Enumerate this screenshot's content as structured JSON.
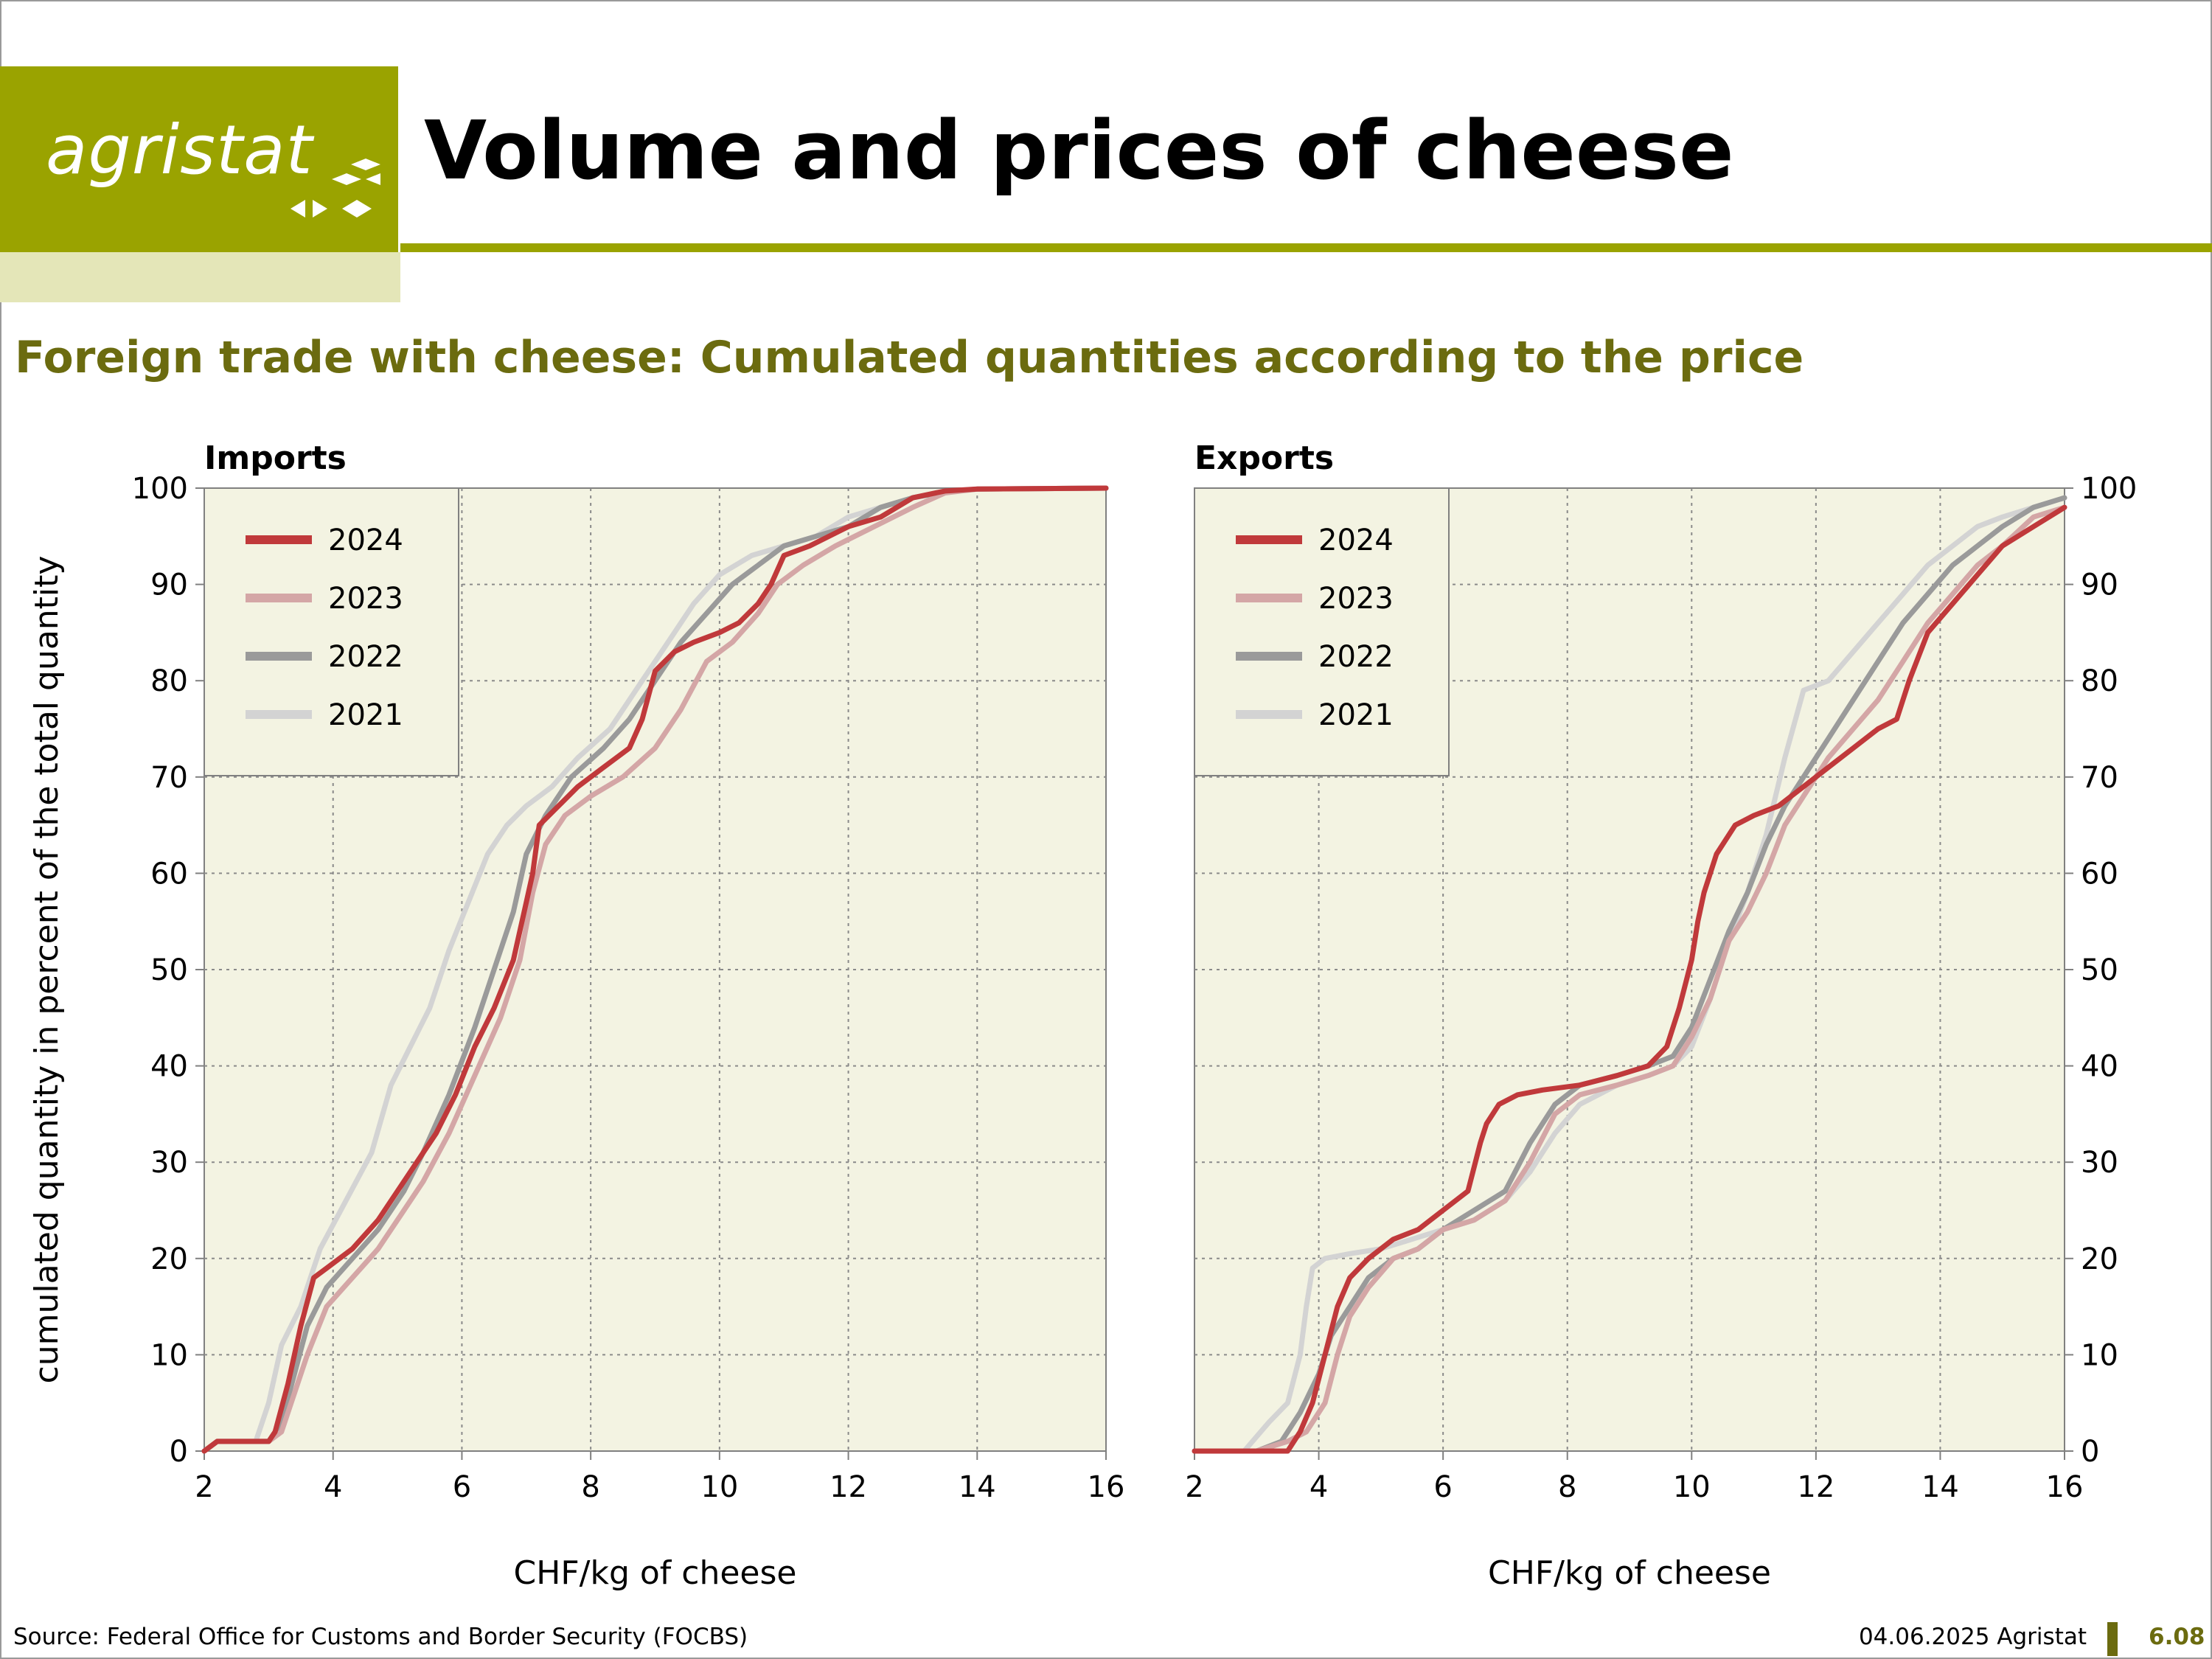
{
  "header": {
    "logo_text": "agristat",
    "title": "Volume and prices of cheese",
    "brand_color": "#9aa300"
  },
  "subtitle": "Foreign trade with cheese: Cumulated quantities according to the price",
  "footer": {
    "source": "Source: Federal Office for Customs and Border Security (FOCBS)",
    "date": "04.06.2025 Agristat",
    "page": "6.08"
  },
  "chart_data": [
    {
      "type": "line",
      "title": "Imports",
      "xlabel": "CHF/kg of cheese",
      "ylabel": "cumulated quantity in percent of the total quantity",
      "xlim": [
        2,
        16
      ],
      "ylim": [
        0,
        100
      ],
      "xticks": [
        2,
        4,
        6,
        8,
        10,
        12,
        14,
        16
      ],
      "yticks": [
        0,
        10,
        20,
        30,
        40,
        50,
        60,
        70,
        80,
        90,
        100
      ],
      "grid": true,
      "legend": "top-left",
      "series": [
        {
          "name": "2024",
          "color": "#c0393b",
          "x": [
            2,
            2.2,
            3,
            3.1,
            3.3,
            3.5,
            3.7,
            3.9,
            4.3,
            4.7,
            5.0,
            5.3,
            5.6,
            5.9,
            6.2,
            6.5,
            6.8,
            7.0,
            7.1,
            7.2,
            7.5,
            7.8,
            8.2,
            8.6,
            8.8,
            9.0,
            9.3,
            9.6,
            10.0,
            10.3,
            10.6,
            10.8,
            11.0,
            11.4,
            12.0,
            12.5,
            13.0,
            13.5,
            14.0,
            16.0
          ],
          "y": [
            0,
            1,
            1,
            2,
            7,
            13,
            18,
            19,
            21,
            24,
            27,
            30,
            33,
            37,
            42,
            46,
            51,
            57,
            60,
            65,
            67,
            69,
            71,
            73,
            76,
            81,
            83,
            84,
            85,
            86,
            88,
            90,
            93,
            94,
            96,
            97,
            99,
            99.7,
            99.9,
            100
          ]
        },
        {
          "name": "2023",
          "color": "#d4a6a6",
          "x": [
            2,
            2.2,
            3,
            3.2,
            3.4,
            3.6,
            3.9,
            4.3,
            4.7,
            5.0,
            5.4,
            5.8,
            6.2,
            6.6,
            6.9,
            7.1,
            7.3,
            7.6,
            8.0,
            8.5,
            9.0,
            9.4,
            9.8,
            10.2,
            10.6,
            10.9,
            11.3,
            11.8,
            12.4,
            13.0,
            13.5,
            14.0,
            16.0
          ],
          "y": [
            0,
            1,
            1,
            2,
            6,
            10,
            15,
            18,
            21,
            24,
            28,
            33,
            39,
            45,
            51,
            58,
            63,
            66,
            68,
            70,
            73,
            77,
            82,
            84,
            87,
            90,
            92,
            94,
            96,
            98,
            99.5,
            99.9,
            100
          ]
        },
        {
          "name": "2022",
          "color": "#9a9a9a",
          "x": [
            2,
            2.2,
            3,
            3.2,
            3.4,
            3.6,
            3.9,
            4.3,
            4.7,
            5.1,
            5.4,
            5.8,
            6.2,
            6.5,
            6.8,
            7.0,
            7.3,
            7.7,
            8.2,
            8.6,
            9.0,
            9.4,
            9.8,
            10.2,
            10.6,
            11.0,
            11.5,
            12.0,
            12.5,
            13.0,
            13.5,
            14.0,
            16.0
          ],
          "y": [
            0,
            1,
            1,
            3,
            8,
            13,
            17,
            20,
            23,
            27,
            31,
            37,
            44,
            50,
            56,
            62,
            66,
            70,
            73,
            76,
            80,
            84,
            87,
            90,
            92,
            94,
            95,
            96,
            98,
            99,
            99.6,
            99.9,
            100
          ]
        },
        {
          "name": "2021",
          "color": "#d3d3d3",
          "x": [
            2,
            2.2,
            2.8,
            3.0,
            3.2,
            3.5,
            3.8,
            4.2,
            4.6,
            4.9,
            5.2,
            5.5,
            5.8,
            6.1,
            6.4,
            6.7,
            7.0,
            7.4,
            7.8,
            8.3,
            8.8,
            9.2,
            9.6,
            10.0,
            10.5,
            11.0,
            11.5,
            12.0,
            12.5,
            13.0,
            13.5,
            14.0,
            16.0
          ],
          "y": [
            0,
            1,
            1,
            5,
            11,
            15,
            21,
            26,
            31,
            38,
            42,
            46,
            52,
            57,
            62,
            65,
            67,
            69,
            72,
            75,
            80,
            84,
            88,
            91,
            93,
            94,
            95,
            97,
            98,
            99,
            99.6,
            99.9,
            100
          ]
        }
      ]
    },
    {
      "type": "line",
      "title": "Exports",
      "xlabel": "CHF/kg of cheese",
      "ylabel": "",
      "xlim": [
        2,
        16
      ],
      "ylim": [
        0,
        100
      ],
      "xticks": [
        2,
        4,
        6,
        8,
        10,
        12,
        14,
        16
      ],
      "yticks": [
        0,
        10,
        20,
        30,
        40,
        50,
        60,
        70,
        80,
        90,
        100
      ],
      "grid": true,
      "legend": "top-left",
      "series": [
        {
          "name": "2024",
          "color": "#c0393b",
          "x": [
            2,
            3.5,
            3.7,
            3.9,
            4.1,
            4.3,
            4.5,
            4.8,
            5.2,
            5.6,
            6.0,
            6.4,
            6.6,
            6.7,
            6.9,
            7.2,
            7.6,
            8.2,
            8.8,
            9.3,
            9.6,
            9.8,
            10.0,
            10.1,
            10.2,
            10.4,
            10.7,
            11.0,
            11.4,
            11.8,
            12.2,
            12.6,
            13.0,
            13.3,
            13.5,
            13.8,
            14.2,
            14.6,
            15.0,
            15.5,
            16.0
          ],
          "y": [
            0,
            0,
            2,
            5,
            10,
            15,
            18,
            20,
            22,
            23,
            25,
            27,
            32,
            34,
            36,
            37,
            37.5,
            38,
            39,
            40,
            42,
            46,
            51,
            55,
            58,
            62,
            65,
            66,
            67,
            69,
            71,
            73,
            75,
            76,
            80,
            85,
            88,
            91,
            94,
            96,
            98
          ]
        },
        {
          "name": "2023",
          "color": "#d4a6a6",
          "x": [
            2,
            3.0,
            3.5,
            3.8,
            4.1,
            4.3,
            4.5,
            4.8,
            5.2,
            5.6,
            6.0,
            6.5,
            7.0,
            7.4,
            7.8,
            8.2,
            8.8,
            9.3,
            9.7,
            10.0,
            10.3,
            10.6,
            10.9,
            11.2,
            11.5,
            11.8,
            12.2,
            12.6,
            13.0,
            13.4,
            13.8,
            14.2,
            14.6,
            15.0,
            15.5,
            16.0
          ],
          "y": [
            0,
            0,
            1,
            2,
            5,
            10,
            14,
            17,
            20,
            21,
            23,
            24,
            26,
            30,
            35,
            37,
            38,
            39,
            40,
            43,
            47,
            53,
            56,
            60,
            65,
            68,
            72,
            75,
            78,
            82,
            86,
            89,
            92,
            94,
            97,
            98
          ]
        },
        {
          "name": "2022",
          "color": "#9a9a9a",
          "x": [
            2,
            3.0,
            3.4,
            3.7,
            4.0,
            4.2,
            4.5,
            4.8,
            5.2,
            5.6,
            6.0,
            6.5,
            7.0,
            7.4,
            7.8,
            8.2,
            8.8,
            9.3,
            9.7,
            10.0,
            10.3,
            10.6,
            10.9,
            11.2,
            11.5,
            11.8,
            12.2,
            12.6,
            13.0,
            13.4,
            13.8,
            14.2,
            14.6,
            15.0,
            15.5,
            16.0
          ],
          "y": [
            0,
            0,
            1,
            4,
            8,
            12,
            15,
            18,
            20,
            21,
            23,
            25,
            27,
            32,
            36,
            38,
            39,
            40,
            41,
            44,
            49,
            54,
            58,
            63,
            67,
            70,
            74,
            78,
            82,
            86,
            89,
            92,
            94,
            96,
            98,
            99
          ]
        },
        {
          "name": "2021",
          "color": "#d3d3d3",
          "x": [
            2,
            2.8,
            3.2,
            3.5,
            3.7,
            3.8,
            3.9,
            4.1,
            4.5,
            5.0,
            5.5,
            6.0,
            6.5,
            7.0,
            7.4,
            7.8,
            8.2,
            8.8,
            9.3,
            9.7,
            10.0,
            10.3,
            10.6,
            10.9,
            11.2,
            11.5,
            11.8,
            12.2,
            12.6,
            13.0,
            13.4,
            13.8,
            14.2,
            14.6,
            15.0,
            15.5,
            16.0
          ],
          "y": [
            0,
            0,
            3,
            5,
            10,
            15,
            19,
            20,
            20.5,
            21,
            22,
            23,
            24,
            26,
            29,
            33,
            36,
            38,
            39,
            40,
            42,
            47,
            53,
            58,
            64,
            72,
            79,
            80,
            83,
            86,
            89,
            92,
            94,
            96,
            97,
            98,
            99
          ]
        }
      ]
    }
  ]
}
